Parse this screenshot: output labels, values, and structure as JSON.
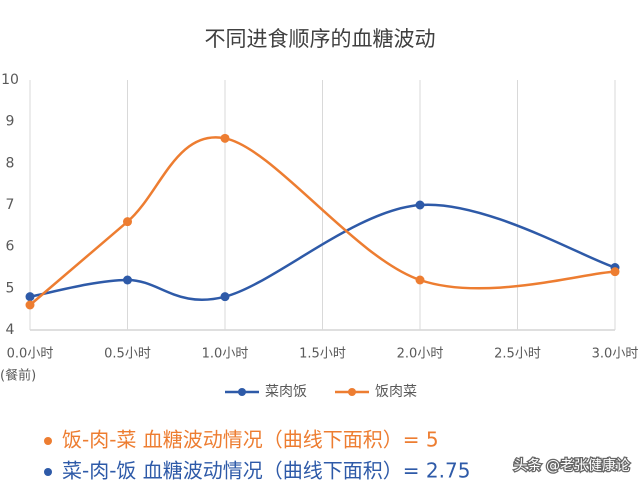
{
  "chart_data": {
    "type": "line",
    "title": "不同进食顺序的血糖波动",
    "xlim": [
      0,
      3
    ],
    "xticks": [
      {
        "value": 0,
        "label": "0.0小时"
      },
      {
        "value": 0.5,
        "label": "0.5小时"
      },
      {
        "value": 1,
        "label": "1.0小时"
      },
      {
        "value": 1.5,
        "label": "1.5小时"
      },
      {
        "value": 2,
        "label": "2.0小时"
      },
      {
        "value": 2.5,
        "label": "2.5小时"
      },
      {
        "value": 3,
        "label": "3.0小时"
      }
    ],
    "x_annotation": "(餐前)",
    "ylim": [
      4,
      10
    ],
    "yticks": [
      4,
      5,
      6,
      7,
      8,
      9,
      10
    ],
    "grid": true,
    "smooth": true,
    "legend": "bottom",
    "series": [
      {
        "name": "菜肉饭",
        "color": "#2e5aa8",
        "x": [
          0,
          0.5,
          1,
          2,
          3
        ],
        "values": [
          4.8,
          5.2,
          4.8,
          7.0,
          5.5
        ]
      },
      {
        "name": "饭肉菜",
        "color": "#ed7d31",
        "x": [
          0,
          0.5,
          1,
          2,
          3
        ],
        "values": [
          4.6,
          6.6,
          8.6,
          5.2,
          5.4
        ]
      }
    ],
    "notes": [
      "饭-肉-菜 血糖波动情况（曲线下面积）= 5",
      "菜-肉-饭 血糖波动情况（曲线下面积）= 2.75"
    ],
    "watermark": "头条 @老张健康论"
  }
}
